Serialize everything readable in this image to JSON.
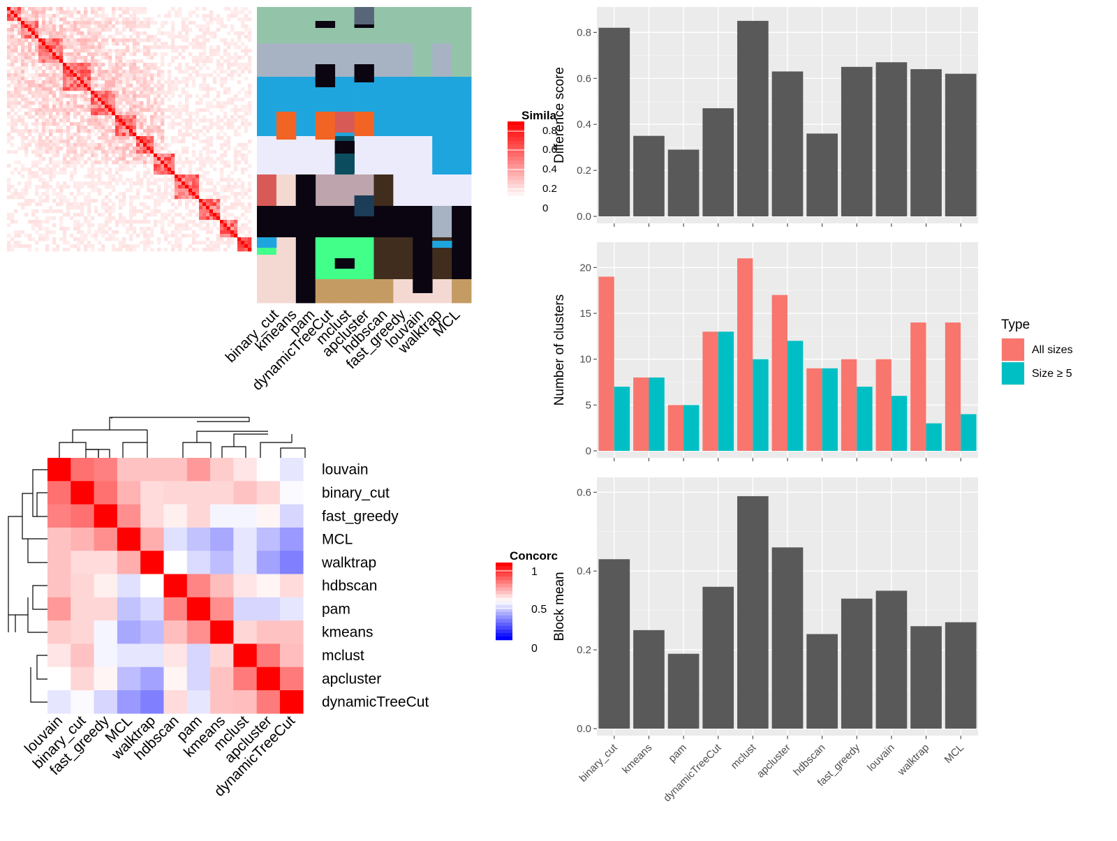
{
  "similarity_panel": {
    "legend_title": "Simila",
    "legend_ticks": [
      "0.8",
      "0.6",
      "0.4",
      "0.2",
      "0"
    ],
    "method_labels": [
      "binary_cut",
      "kmeans",
      "pam",
      "dynamicTreeCut",
      "mclust",
      "apcluster",
      "hdbscan",
      "fast_greedy",
      "louvain",
      "walktrap",
      "MCL"
    ],
    "colors": {
      "high": "#ff0000",
      "low": "#ffffff"
    }
  },
  "concordance_panel": {
    "legend_title": "Concorc",
    "legend_ticks": [
      "1",
      "0.5",
      "0"
    ],
    "colors": {
      "high": "#ff0000",
      "mid": "#ffffff",
      "low": "#0000ff"
    }
  },
  "chart_data": [
    {
      "type": "heatmap",
      "title": "",
      "rows": [
        "louvain",
        "binary_cut",
        "fast_greedy",
        "MCL",
        "walktrap",
        "hdbscan",
        "pam",
        "kmeans",
        "mclust",
        "apcluster",
        "dynamicTreeCut"
      ],
      "columns": [
        "louvain",
        "binary_cut",
        "fast_greedy",
        "MCL",
        "walktrap",
        "hdbscan",
        "pam",
        "kmeans",
        "mclust",
        "apcluster",
        "dynamicTreeCut"
      ],
      "values": [
        [
          1.0,
          0.78,
          0.75,
          0.62,
          0.62,
          0.62,
          0.7,
          0.6,
          0.55,
          0.5,
          0.45
        ],
        [
          0.78,
          1.0,
          0.78,
          0.65,
          0.57,
          0.58,
          0.58,
          0.58,
          0.62,
          0.58,
          0.49
        ],
        [
          0.75,
          0.78,
          1.0,
          0.72,
          0.57,
          0.53,
          0.58,
          0.48,
          0.48,
          0.52,
          0.42
        ],
        [
          0.62,
          0.65,
          0.72,
          1.0,
          0.66,
          0.44,
          0.38,
          0.33,
          0.45,
          0.37,
          0.3
        ],
        [
          0.62,
          0.57,
          0.57,
          0.66,
          1.0,
          0.5,
          0.43,
          0.37,
          0.45,
          0.32,
          0.25
        ],
        [
          0.62,
          0.58,
          0.53,
          0.44,
          0.5,
          1.0,
          0.74,
          0.63,
          0.55,
          0.52,
          0.57
        ],
        [
          0.7,
          0.58,
          0.58,
          0.38,
          0.43,
          0.74,
          1.0,
          0.72,
          0.42,
          0.42,
          0.45
        ],
        [
          0.6,
          0.58,
          0.48,
          0.33,
          0.37,
          0.63,
          0.72,
          1.0,
          0.58,
          0.62,
          0.62
        ],
        [
          0.55,
          0.62,
          0.48,
          0.45,
          0.45,
          0.55,
          0.42,
          0.58,
          1.0,
          0.76,
          0.63
        ],
        [
          0.5,
          0.58,
          0.52,
          0.37,
          0.32,
          0.52,
          0.42,
          0.62,
          0.76,
          1.0,
          0.76
        ],
        [
          0.45,
          0.49,
          0.42,
          0.3,
          0.25,
          0.57,
          0.45,
          0.62,
          0.63,
          0.76,
          1.0
        ]
      ],
      "color_scale": {
        "range": [
          0,
          1
        ],
        "mid": 0.5
      },
      "legend": "Concorc"
    },
    {
      "type": "bar",
      "title": "",
      "xlabel": "",
      "ylabel": "Difference score",
      "categories": [
        "binary_cut",
        "kmeans",
        "pam",
        "dynamicTreeCut",
        "mclust",
        "apcluster",
        "hdbscan",
        "fast_greedy",
        "louvain",
        "walktrap",
        "MCL"
      ],
      "values": [
        0.82,
        0.35,
        0.29,
        0.47,
        0.85,
        0.63,
        0.36,
        0.65,
        0.67,
        0.64,
        0.62
      ],
      "ylim": [
        0,
        0.88
      ],
      "yticks": [
        "0.0",
        "0.2",
        "0.4",
        "0.6",
        "0.8"
      ],
      "grid": true,
      "colors": {
        "bar": "#595959",
        "panel": "#ebebeb"
      }
    },
    {
      "type": "bar",
      "title": "",
      "xlabel": "",
      "ylabel": "Number of clusters",
      "categories": [
        "binary_cut",
        "kmeans",
        "pam",
        "dynamicTreeCut",
        "mclust",
        "apcluster",
        "hdbscan",
        "fast_greedy",
        "louvain",
        "walktrap",
        "MCL"
      ],
      "series": [
        {
          "name": "All sizes",
          "values": [
            19,
            8,
            5,
            13,
            21,
            17,
            9,
            10,
            10,
            14,
            14
          ]
        },
        {
          "name": "Size ≥ 5",
          "values": [
            7,
            8,
            5,
            13,
            10,
            12,
            9,
            7,
            6,
            3,
            4
          ]
        }
      ],
      "ylim": [
        0,
        22
      ],
      "yticks": [
        "0",
        "5",
        "10",
        "15",
        "20"
      ],
      "legend_title": "Type",
      "legend_position": "right",
      "grid": true,
      "colors": {
        "series": [
          "#f8766d",
          "#00bfc4"
        ],
        "panel": "#ebebeb"
      }
    },
    {
      "type": "bar",
      "title": "",
      "xlabel": "",
      "ylabel": "Block mean",
      "categories": [
        "binary_cut",
        "kmeans",
        "pam",
        "dynamicTreeCut",
        "mclust",
        "apcluster",
        "hdbscan",
        "fast_greedy",
        "louvain",
        "walktrap",
        "MCL"
      ],
      "values": [
        0.43,
        0.25,
        0.19,
        0.36,
        0.59,
        0.46,
        0.24,
        0.33,
        0.35,
        0.26,
        0.27
      ],
      "ylim": [
        0,
        0.62
      ],
      "yticks": [
        "0.0",
        "0.2",
        "0.4",
        "0.6"
      ],
      "grid": true,
      "colors": {
        "bar": "#595959",
        "panel": "#ebebeb"
      }
    }
  ]
}
